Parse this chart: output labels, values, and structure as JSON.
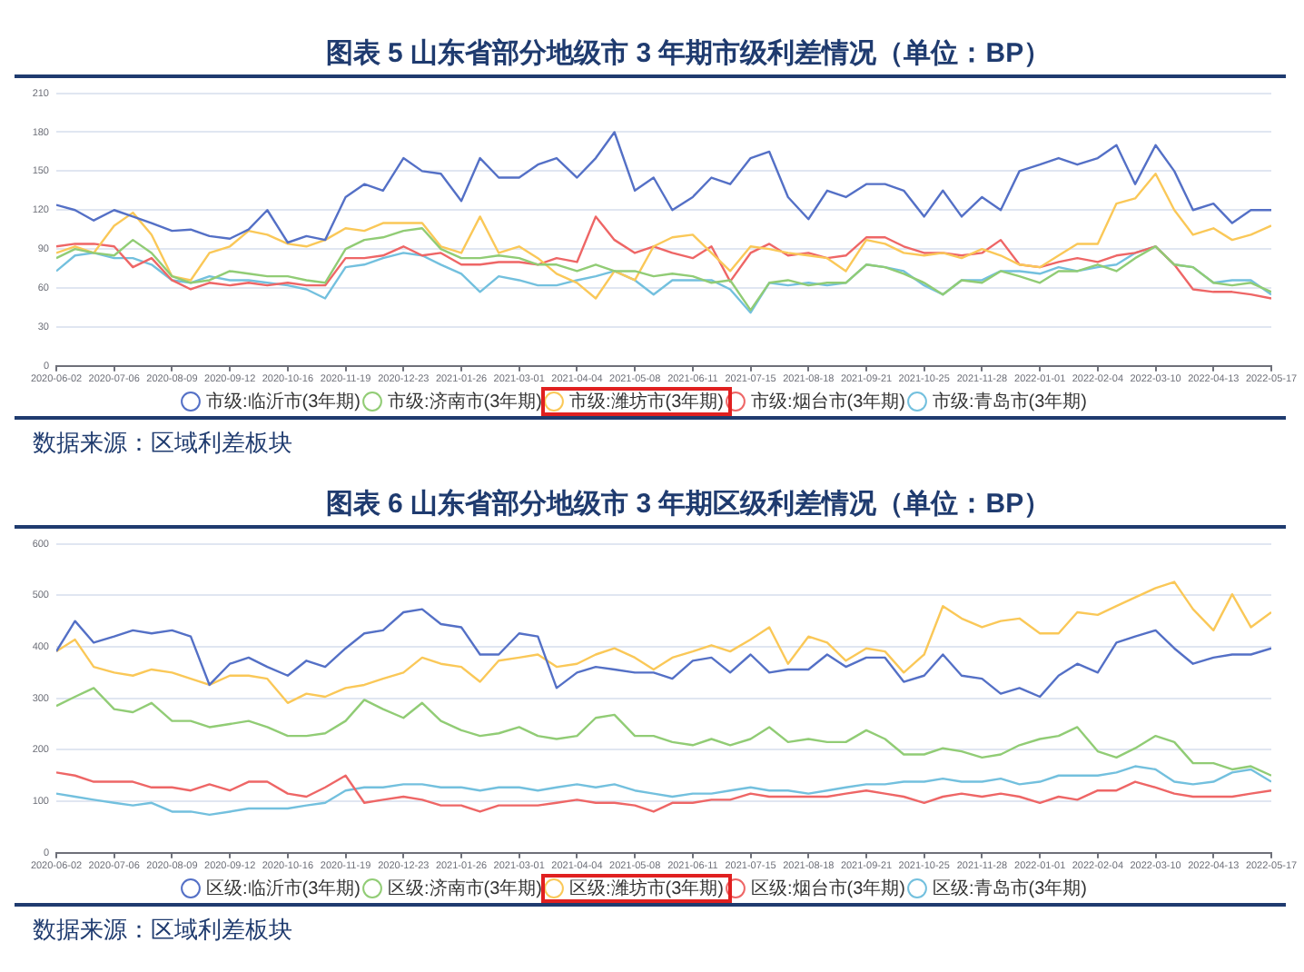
{
  "chart_data": [
    {
      "type": "line",
      "title": "图表 5 山东省部分地级市 3 年期市级利差情况（单位：BP）",
      "annotations": [
        "数据来源：区域利差板块"
      ],
      "x": [
        "2020-06-02",
        "2020-06-13",
        "2020-06-24",
        "2020-07-06",
        "2020-07-17",
        "2020-07-28",
        "2020-08-09",
        "2020-08-20",
        "2020-08-31",
        "2020-09-12",
        "2020-09-23",
        "2020-10-04",
        "2020-10-16",
        "2020-10-27",
        "2020-11-07",
        "2020-11-19",
        "2020-11-30",
        "2020-12-11",
        "2020-12-23",
        "2021-01-03",
        "2021-01-14",
        "2021-01-26",
        "2021-02-06",
        "2021-02-17",
        "2021-03-01",
        "2021-03-12",
        "2021-03-23",
        "2021-04-04",
        "2021-04-15",
        "2021-04-26",
        "2021-05-08",
        "2021-05-19",
        "2021-05-30",
        "2021-06-11",
        "2021-06-22",
        "2021-07-03",
        "2021-07-15",
        "2021-07-26",
        "2021-08-06",
        "2021-08-18",
        "2021-08-29",
        "2021-09-09",
        "2021-09-21",
        "2021-10-02",
        "2021-10-13",
        "2021-10-25",
        "2021-11-05",
        "2021-11-16",
        "2021-11-28",
        "2021-12-09",
        "2021-12-20",
        "2022-01-01",
        "2022-01-12",
        "2022-01-23",
        "2022-02-04",
        "2022-02-15",
        "2022-02-26",
        "2022-03-10",
        "2022-03-21",
        "2022-04-01",
        "2022-04-13",
        "2022-04-24",
        "2022-05-05",
        "2022-05-17"
      ],
      "xlim": [
        "2020-06-02",
        "2022-05-17"
      ],
      "xticks": [
        "2020-06-02",
        "2020-07-06",
        "2020-08-09",
        "2020-09-12",
        "2020-10-16",
        "2020-11-19",
        "2020-12-23",
        "2021-01-26",
        "2021-03-01",
        "2021-04-04",
        "2021-05-08",
        "2021-06-11",
        "2021-07-15",
        "2021-08-18",
        "2021-09-21",
        "2021-10-25",
        "2021-11-28",
        "2022-01-01",
        "2022-02-04",
        "2022-03-10",
        "2022-04-13",
        "2022-05-17"
      ],
      "ylim": [
        0,
        210
      ],
      "yticks": [
        0,
        30,
        60,
        90,
        120,
        150,
        180,
        210
      ],
      "grid": "y",
      "legend": "bottom",
      "series": [
        {
          "name": "市级:临沂市(3年期)",
          "color": "#5470c6",
          "values": [
            124,
            120,
            112,
            120,
            115,
            110,
            104,
            105,
            100,
            98,
            105,
            120,
            95,
            100,
            97,
            130,
            140,
            135,
            160,
            150,
            148,
            127,
            160,
            145,
            145,
            155,
            160,
            145,
            160,
            180,
            135,
            145,
            120,
            130,
            145,
            140,
            160,
            165,
            130,
            113,
            135,
            130,
            140,
            140,
            135,
            115,
            135,
            115,
            130,
            120,
            150,
            155,
            160,
            155,
            160,
            170,
            140,
            170,
            150,
            120,
            125,
            110,
            120,
            120
          ]
        },
        {
          "name": "市级:济南市(3年期)",
          "color": "#91cc75",
          "values": [
            83,
            90,
            87,
            85,
            97,
            87,
            69,
            64,
            66,
            73,
            71,
            69,
            69,
            66,
            64,
            90,
            97,
            99,
            104,
            106,
            90,
            83,
            83,
            85,
            83,
            78,
            78,
            73,
            78,
            73,
            73,
            69,
            71,
            69,
            64,
            66,
            43,
            64,
            66,
            62,
            64,
            64,
            78,
            76,
            71,
            64,
            55,
            66,
            64,
            73,
            69,
            64,
            73,
            73,
            78,
            73,
            83,
            92,
            78,
            76,
            64,
            62,
            64,
            57
          ]
        },
        {
          "name": "市级:潍坊市(3年期)",
          "color": "#fac858",
          "values": [
            87,
            92,
            87,
            108,
            118,
            101,
            69,
            66,
            87,
            92,
            104,
            101,
            94,
            92,
            97,
            106,
            104,
            110,
            110,
            110,
            92,
            87,
            115,
            87,
            92,
            83,
            71,
            64,
            52,
            73,
            66,
            92,
            99,
            101,
            87,
            73,
            92,
            90,
            87,
            85,
            83,
            73,
            97,
            94,
            87,
            85,
            87,
            83,
            90,
            85,
            78,
            76,
            85,
            94,
            94,
            125,
            129,
            148,
            120,
            101,
            106,
            97,
            101,
            108
          ]
        },
        {
          "name": "市级:烟台市(3年期)",
          "color": "#ee6666",
          "values": [
            92,
            94,
            94,
            92,
            76,
            83,
            66,
            59,
            64,
            62,
            64,
            62,
            64,
            62,
            62,
            83,
            83,
            85,
            92,
            85,
            87,
            78,
            78,
            80,
            80,
            78,
            83,
            80,
            115,
            97,
            87,
            92,
            87,
            83,
            92,
            65,
            87,
            94,
            85,
            87,
            83,
            85,
            99,
            99,
            92,
            87,
            87,
            85,
            87,
            97,
            78,
            76,
            80,
            83,
            80,
            85,
            87,
            92,
            78,
            59,
            57,
            57,
            55,
            52
          ]
        },
        {
          "name": "市级:青岛市(3年期)",
          "color": "#73c0de",
          "values": [
            73,
            85,
            87,
            83,
            83,
            78,
            66,
            64,
            69,
            66,
            66,
            64,
            62,
            59,
            52,
            76,
            78,
            83,
            87,
            85,
            78,
            71,
            57,
            69,
            66,
            62,
            62,
            66,
            69,
            73,
            66,
            55,
            66,
            66,
            66,
            59,
            41,
            64,
            62,
            64,
            62,
            64,
            78,
            76,
            73,
            62,
            55,
            66,
            66,
            73,
            73,
            71,
            76,
            73,
            76,
            78,
            87,
            92,
            78,
            76,
            64,
            66,
            66,
            55
          ]
        }
      ]
    },
    {
      "type": "line",
      "title": "图表 6 山东省部分地级市 3 年期区级利差情况（单位：BP）",
      "annotations": [
        "数据来源：区域利差板块"
      ],
      "x": [
        "2020-06-02",
        "2020-06-13",
        "2020-06-24",
        "2020-07-06",
        "2020-07-17",
        "2020-07-28",
        "2020-08-09",
        "2020-08-20",
        "2020-08-31",
        "2020-09-12",
        "2020-09-23",
        "2020-10-04",
        "2020-10-16",
        "2020-10-27",
        "2020-11-07",
        "2020-11-19",
        "2020-11-30",
        "2020-12-11",
        "2020-12-23",
        "2021-01-03",
        "2021-01-14",
        "2021-01-26",
        "2021-02-06",
        "2021-02-17",
        "2021-03-01",
        "2021-03-12",
        "2021-03-23",
        "2021-04-04",
        "2021-04-15",
        "2021-04-26",
        "2021-05-08",
        "2021-05-19",
        "2021-05-30",
        "2021-06-11",
        "2021-06-22",
        "2021-07-03",
        "2021-07-15",
        "2021-07-26",
        "2021-08-06",
        "2021-08-18",
        "2021-08-29",
        "2021-09-09",
        "2021-09-21",
        "2021-10-02",
        "2021-10-13",
        "2021-10-25",
        "2021-11-05",
        "2021-11-16",
        "2021-11-28",
        "2021-12-09",
        "2021-12-20",
        "2022-01-01",
        "2022-01-12",
        "2022-01-23",
        "2022-02-04",
        "2022-02-15",
        "2022-02-26",
        "2022-03-10",
        "2022-03-21",
        "2022-04-01",
        "2022-04-13",
        "2022-04-24",
        "2022-05-05",
        "2022-05-17"
      ],
      "xlim": [
        "2020-06-02",
        "2022-05-17"
      ],
      "xticks": [
        "2020-06-02",
        "2020-07-06",
        "2020-08-09",
        "2020-09-12",
        "2020-10-16",
        "2020-11-19",
        "2020-12-23",
        "2021-01-26",
        "2021-03-01",
        "2021-04-04",
        "2021-05-08",
        "2021-06-11",
        "2021-07-15",
        "2021-08-18",
        "2021-09-21",
        "2021-10-25",
        "2021-11-28",
        "2022-01-01",
        "2022-02-04",
        "2022-03-10",
        "2022-04-13",
        "2022-05-17"
      ],
      "ylim": [
        0,
        600
      ],
      "yticks": [
        0,
        100,
        200,
        300,
        400,
        500,
        600
      ],
      "grid": "y",
      "legend": "bottom",
      "series": [
        {
          "name": "区级:临沂市(3年期)",
          "color": "#5470c6",
          "values": [
            391,
            450,
            408,
            420,
            432,
            426,
            432,
            420,
            326,
            367,
            379,
            361,
            344,
            373,
            361,
            397,
            426,
            432,
            467,
            473,
            444,
            438,
            385,
            385,
            426,
            420,
            320,
            350,
            361,
            356,
            350,
            350,
            338,
            373,
            379,
            350,
            385,
            350,
            356,
            356,
            385,
            361,
            379,
            379,
            332,
            344,
            385,
            344,
            338,
            309,
            320,
            303,
            344,
            367,
            350,
            408,
            420,
            432,
            397,
            367,
            379,
            385,
            385,
            397
          ]
        },
        {
          "name": "区级:济南市(3年期)",
          "color": "#91cc75",
          "values": [
            285,
            303,
            320,
            279,
            273,
            291,
            256,
            256,
            244,
            250,
            256,
            244,
            227,
            227,
            232,
            256,
            297,
            279,
            262,
            291,
            256,
            238,
            227,
            232,
            244,
            227,
            221,
            227,
            262,
            268,
            227,
            227,
            215,
            209,
            221,
            209,
            221,
            244,
            215,
            221,
            215,
            215,
            238,
            221,
            191,
            191,
            203,
            197,
            185,
            191,
            209,
            221,
            227,
            244,
            197,
            185,
            203,
            227,
            215,
            174,
            174,
            162,
            168,
            150
          ]
        },
        {
          "name": "区级:潍坊市(3年期)",
          "color": "#fac858",
          "values": [
            391,
            414,
            361,
            350,
            344,
            356,
            350,
            338,
            326,
            344,
            344,
            338,
            291,
            309,
            303,
            320,
            326,
            338,
            350,
            379,
            367,
            361,
            332,
            373,
            379,
            385,
            361,
            367,
            385,
            397,
            379,
            356,
            379,
            391,
            403,
            391,
            414,
            438,
            367,
            420,
            408,
            373,
            397,
            391,
            350,
            385,
            479,
            455,
            438,
            450,
            455,
            426,
            426,
            467,
            462,
            479,
            496,
            514,
            526,
            473,
            432,
            502,
            438,
            467
          ]
        },
        {
          "name": "区级:烟台市(3年期)",
          "color": "#ee6666",
          "values": [
            156,
            150,
            138,
            138,
            138,
            127,
            127,
            121,
            133,
            121,
            138,
            138,
            115,
            109,
            127,
            150,
            97,
            103,
            109,
            103,
            92,
            92,
            80,
            92,
            92,
            92,
            97,
            103,
            97,
            97,
            92,
            80,
            97,
            97,
            103,
            103,
            115,
            109,
            109,
            109,
            109,
            115,
            121,
            115,
            109,
            97,
            109,
            115,
            109,
            115,
            109,
            97,
            109,
            103,
            121,
            121,
            138,
            127,
            115,
            109,
            109,
            109,
            115,
            121
          ]
        },
        {
          "name": "区级:青岛市(3年期)",
          "color": "#73c0de",
          "values": [
            115,
            109,
            103,
            97,
            92,
            97,
            80,
            80,
            74,
            80,
            86,
            86,
            86,
            92,
            97,
            121,
            127,
            127,
            133,
            133,
            127,
            127,
            121,
            127,
            127,
            121,
            127,
            133,
            127,
            133,
            121,
            115,
            109,
            115,
            115,
            121,
            127,
            121,
            121,
            115,
            121,
            127,
            133,
            133,
            138,
            138,
            144,
            138,
            138,
            144,
            133,
            138,
            150,
            150,
            150,
            156,
            168,
            162,
            138,
            133,
            138,
            156,
            162,
            138
          ]
        }
      ]
    }
  ]
}
